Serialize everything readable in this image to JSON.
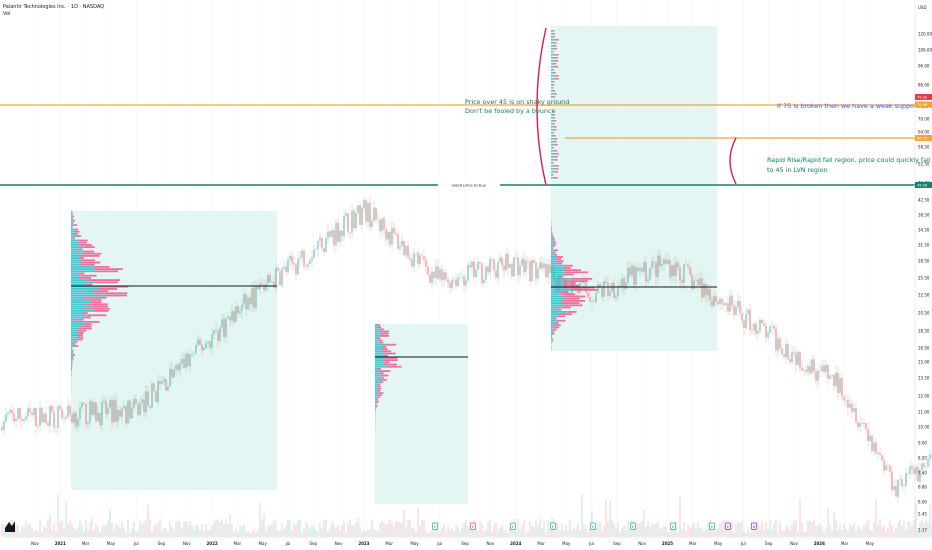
{
  "header": {
    "title": "Palantir Technologies Inc. · 1D · NASDAQ",
    "indicator": "Vol"
  },
  "colors": {
    "up": "#26a69a",
    "down": "#ef5350",
    "vp_up": "#2ec4cc",
    "vp_down": "#f06292",
    "box_fill": "#e4f6f3",
    "orange_line": "#f7a13a",
    "green_line": "#17806c",
    "curve": "#d81b60",
    "annotation_green": "#0f7d61",
    "annotation_blue": "#2962ff",
    "price_tag": "#f23645"
  },
  "chart_data": {
    "type": "candlestick",
    "y_scale": "log",
    "currency": "USD",
    "price_ticks": [
      "120.00",
      "106.00",
      "96.00",
      "86.00",
      "70.00",
      "64.00",
      "58.50",
      "52.50",
      "48.00",
      "42.50",
      "38.50",
      "34.50",
      "31.50",
      "28.50",
      "25.50",
      "22.50",
      "20.50",
      "18.50",
      "16.50",
      "15.00",
      "13.50",
      "12.00",
      "11.00",
      "10.00",
      "9.00",
      "8.20",
      "7.40",
      "6.80",
      "6.00",
      "5.45",
      "5.17"
    ],
    "time_ticks": [
      "Nov",
      "2021",
      "Mar",
      "May",
      "Jul",
      "Sep",
      "Nov",
      "2022",
      "Mar",
      "May",
      "Jul",
      "Sep",
      "Nov",
      "2023",
      "Mar",
      "May",
      "Jul",
      "Sep",
      "Nov",
      "2024",
      "Mar",
      "May",
      "Jul",
      "Sep",
      "Nov",
      "2025",
      "Mar",
      "May",
      "Jul",
      "Sep",
      "Nov",
      "2026",
      "Mar",
      "May"
    ],
    "key_prices": {
      "last": "79.32",
      "tag_2": "75.86",
      "tag_3": "60.77",
      "good_price": "45.59"
    },
    "series": [
      {
        "segments": [
          {
            "t0": 0,
            "t1": 4,
            "p0": 10,
            "p1": 10.5
          },
          {
            "t0": 4,
            "t1": 9,
            "p0": 10.5,
            "p1": 23
          },
          {
            "t0": 9,
            "t1": 13,
            "p0": 23,
            "p1": 38
          },
          {
            "t0": 13,
            "t1": 16,
            "p0": 38,
            "p1": 24
          },
          {
            "t0": 16,
            "t1": 19,
            "p0": 24,
            "p1": 27
          },
          {
            "t0": 19,
            "t1": 22,
            "p0": 27,
            "p1": 22
          },
          {
            "t0": 22,
            "t1": 25,
            "p0": 22,
            "p1": 27
          },
          {
            "t0": 25,
            "t1": 29,
            "p0": 27,
            "p1": 17
          },
          {
            "t0": 29,
            "t1": 32,
            "p0": 17,
            "p1": 12
          },
          {
            "t0": 32,
            "t1": 34,
            "p0": 12,
            "p1": 6.5
          },
          {
            "t0": 34,
            "t1": 37,
            "p0": 6.5,
            "p1": 8.8
          },
          {
            "t0": 37,
            "t1": 40,
            "p0": 8.8,
            "p1": 7.4
          },
          {
            "t0": 40,
            "t1": 43,
            "p0": 7.4,
            "p1": 6.0
          },
          {
            "t0": 43,
            "t1": 46,
            "p0": 6.0,
            "p1": 7.5
          },
          {
            "t0": 46,
            "t1": 48,
            "p0": 7.5,
            "p1": 6.6
          },
          {
            "t0": 48,
            "t1": 51,
            "p0": 6.6,
            "p1": 18
          },
          {
            "t0": 51,
            "t1": 54,
            "p0": 18,
            "p1": 15
          },
          {
            "t0": 54,
            "t1": 57,
            "p0": 15,
            "p1": 20
          },
          {
            "t0": 57,
            "t1": 59,
            "p0": 20,
            "p1": 17
          },
          {
            "t0": 59,
            "t1": 62,
            "p0": 17,
            "p1": 25.5
          },
          {
            "t0": 62,
            "t1": 65,
            "p0": 25.5,
            "p1": 21.5
          },
          {
            "t0": 65,
            "t1": 68,
            "p0": 21.5,
            "p1": 29
          },
          {
            "t0": 68,
            "t1": 71,
            "p0": 29,
            "p1": 42
          },
          {
            "t0": 71,
            "t1": 74,
            "p0": 42,
            "p1": 70
          },
          {
            "t0": 74,
            "t1": 76,
            "p0": 70,
            "p1": 83
          },
          {
            "t0": 76,
            "t1": 77,
            "p0": 83,
            "p1": 118
          },
          {
            "t0": 77,
            "t1": 79,
            "p0": 118,
            "p1": 80
          }
        ]
      }
    ],
    "volume_profiles": [
      {
        "start": "Feb 2021",
        "end": "Apr 2022",
        "poc": "~25.5",
        "low": "~6",
        "high": "~38"
      },
      {
        "start": "Jan 2023",
        "end": "Jul 2023",
        "poc": "~16.5",
        "low": "~6",
        "high": "~19.5"
      },
      {
        "start": "Feb 2024",
        "end": "Mar 2025",
        "poc": "~23.5",
        "low": "~16.5",
        "high": "~120"
      }
    ],
    "annotations": {
      "shaky_line1": "Price over 45 is on shaky ground",
      "shaky_line2": "Don't be fooled by a bounce",
      "weak_support": "If 75 is broken then we have a weak support at 62",
      "rapid_line1": "Rapid Rise/Rapid fall region, price could quickly fall",
      "rapid_line2": "to 45 in LVN region",
      "good_price_label": "Good price to buy"
    }
  }
}
